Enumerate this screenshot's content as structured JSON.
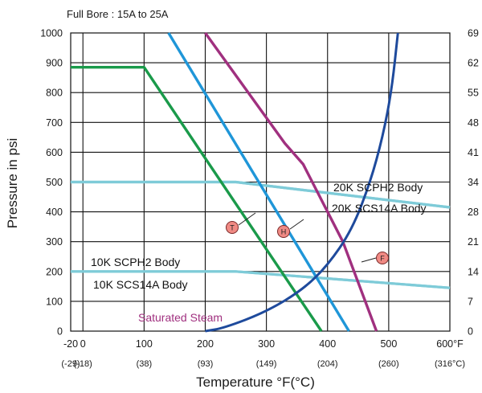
{
  "chart_data": {
    "type": "line",
    "title": "Full Bore : 15A to 25A",
    "xlabel": "Temperature °F(°C)",
    "ylabel": "Pressure in psi",
    "xlim": [
      -20,
      600
    ],
    "ylim": [
      0,
      1000
    ],
    "x_ticks_f": [
      "-20",
      "0",
      "100",
      "200",
      "300",
      "400",
      "500",
      "600°F"
    ],
    "x_ticks_c": [
      "(-29)",
      "(-18)",
      "(38)",
      "(93)",
      "(149)",
      "(204)",
      "(260)",
      "(316°C)"
    ],
    "y_ticks": [
      "0",
      "100",
      "200",
      "300",
      "400",
      "500",
      "600",
      "700",
      "800",
      "900",
      "1000"
    ],
    "y2_ticks": [
      "0",
      "7",
      "14",
      "21",
      "28",
      "34",
      "41",
      "48",
      "55",
      "62",
      "69"
    ],
    "grid": true,
    "series": [
      {
        "name": "20K SCPH2 Body",
        "color": "#7ecbd8",
        "x": [
          -20,
          250,
          600
        ],
        "y": [
          500,
          500,
          415
        ]
      },
      {
        "name": "20K SCS14A Body",
        "color": "#7ecbd8",
        "x": [
          -20,
          250,
          600
        ],
        "y": [
          500,
          500,
          415
        ]
      },
      {
        "name": "10K SCPH2 Body",
        "color": "#7ecbd8",
        "x": [
          -20,
          250,
          600
        ],
        "y": [
          200,
          200,
          145
        ]
      },
      {
        "name": "10K SCS14A Body",
        "color": "#7ecbd8",
        "x": [
          -20,
          250,
          600
        ],
        "y": [
          200,
          200,
          145
        ]
      },
      {
        "name": "T",
        "color": "#1a9a4a",
        "x": [
          -20,
          100,
          390
        ],
        "y": [
          885,
          885,
          0
        ]
      },
      {
        "name": "H",
        "color": "#1f96d8",
        "x": [
          140,
          435
        ],
        "y": [
          1000,
          0
        ]
      },
      {
        "name": "F",
        "color": "#a0307f",
        "x": [
          200,
          330,
          360,
          425,
          480
        ],
        "y": [
          1000,
          630,
          560,
          300,
          0
        ]
      },
      {
        "name": "Saturated Steam",
        "color": "#1e4a9c",
        "x": [
          200,
          230,
          300,
          360,
          400,
          440,
          470,
          490,
          505,
          515
        ],
        "y": [
          0,
          10,
          65,
          140,
          220,
          340,
          500,
          650,
          810,
          1000
        ]
      }
    ],
    "labels": {
      "l20k_scph2": "20K SCPH2 Body",
      "l20k_scs14a": "20K SCS14A Body",
      "l10k_scph2": "10K SCPH2 Body",
      "l10k_scs14a": "10K SCS14A Body",
      "steam": "Saturated Steam",
      "mark_t": "T",
      "mark_h": "H",
      "mark_f": "F"
    }
  }
}
